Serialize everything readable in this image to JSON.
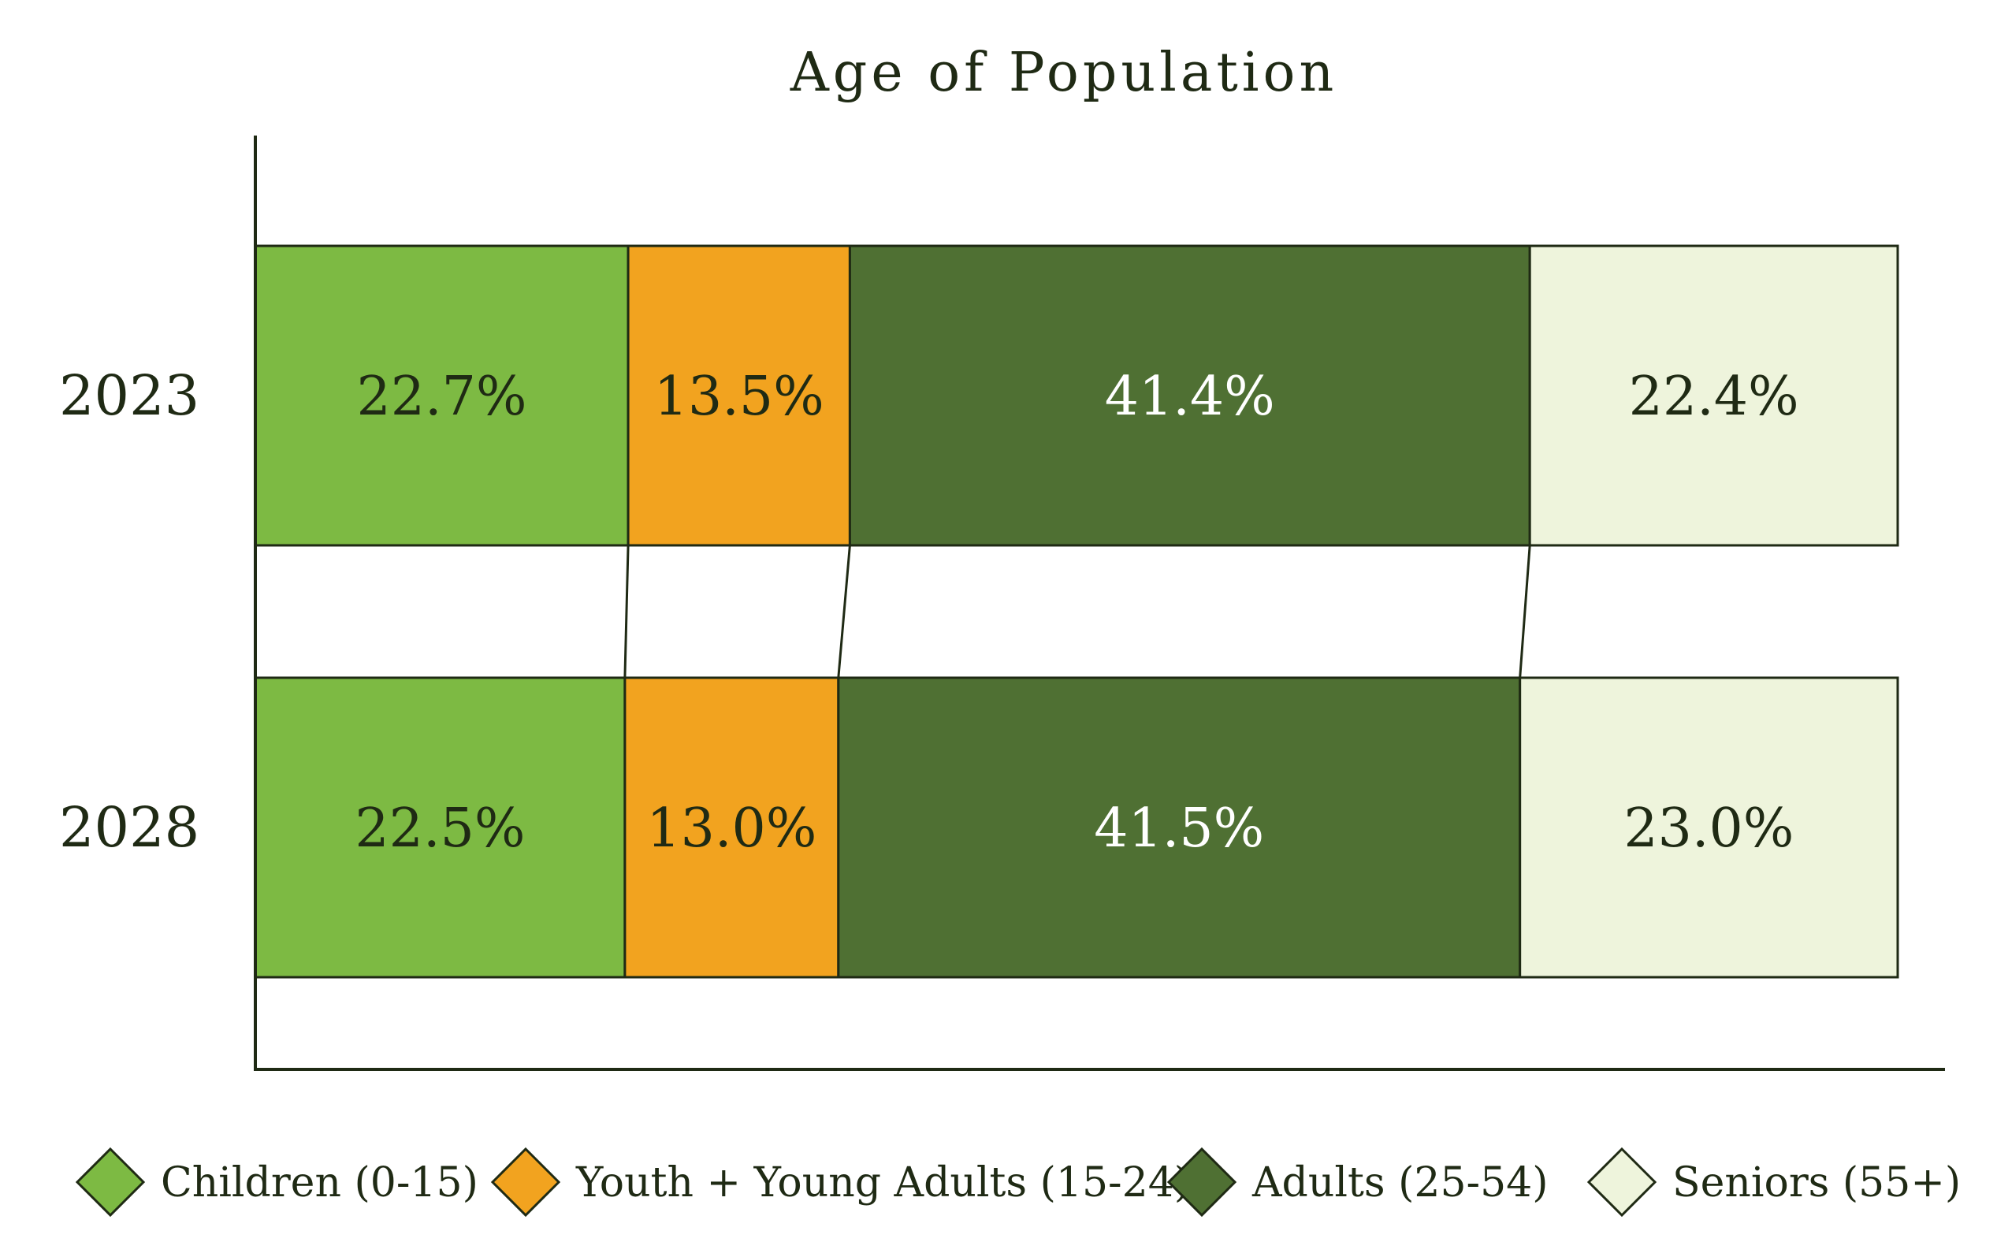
{
  "chart_data": {
    "type": "bar",
    "orientation": "horizontal",
    "stacked": true,
    "normalized_percent": true,
    "title": "Age of Population",
    "categories": [
      "2023",
      "2028"
    ],
    "series": [
      {
        "name": "Children (0-15)",
        "values": [
          22.7,
          22.5
        ],
        "labels": [
          "22.7%",
          "22.5%"
        ],
        "color": "#7DBA43",
        "label_color": "#1f2a14"
      },
      {
        "name": "Youth + Young Adults (15-24)",
        "values": [
          13.5,
          13.0
        ],
        "labels": [
          "13.5%",
          "13.0%"
        ],
        "color": "#F2A31F",
        "label_color": "#1f2a14"
      },
      {
        "name": "Adults (25-54)",
        "values": [
          41.4,
          41.5
        ],
        "labels": [
          "41.4%",
          "41.5%"
        ],
        "color": "#4F7033",
        "label_color": "#ffffff"
      },
      {
        "name": "Seniors (55+)",
        "values": [
          22.4,
          23.0
        ],
        "labels": [
          "22.4%",
          "23.0%"
        ],
        "color": "#EEF4DC",
        "label_color": "#1f2a14"
      }
    ],
    "xlim": [
      0,
      100
    ],
    "grid": false,
    "legend_position": "bottom",
    "connector_lines": true,
    "outline_color": "#1f2a14"
  }
}
